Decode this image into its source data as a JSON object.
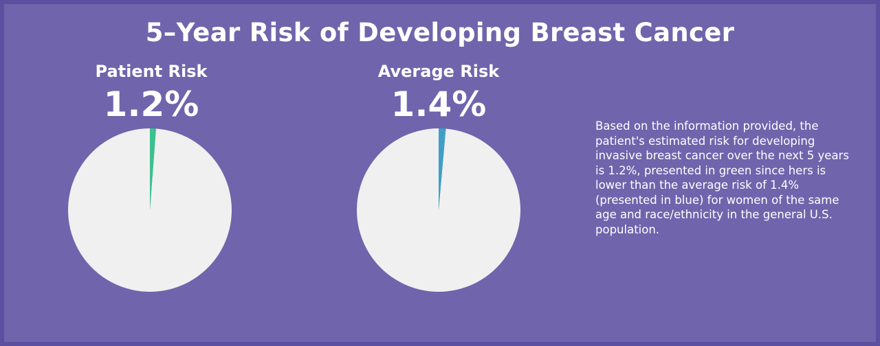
{
  "title": "5–Year Risk of Developing Breast Cancer",
  "description": "Based on the information provided, the patient's estimated risk for developing invasive breast cancer over the next 5 years is 1.2%, presented in green since hers is lower than the average risk of 1.4% (presented in blue) for women of the same age and race/ethnicity in the general U.S. population.",
  "chart_data": [
    {
      "type": "pie",
      "label": "Patient Risk",
      "value_label": "1.2%",
      "values": [
        1.2,
        98.8
      ],
      "colors": [
        "#3cc08f",
        "#f0f0f0"
      ]
    },
    {
      "type": "pie",
      "label": "Average Risk",
      "value_label": "1.4%",
      "values": [
        1.4,
        98.6
      ],
      "colors": [
        "#3ea0c7",
        "#f0f0f0"
      ]
    }
  ]
}
